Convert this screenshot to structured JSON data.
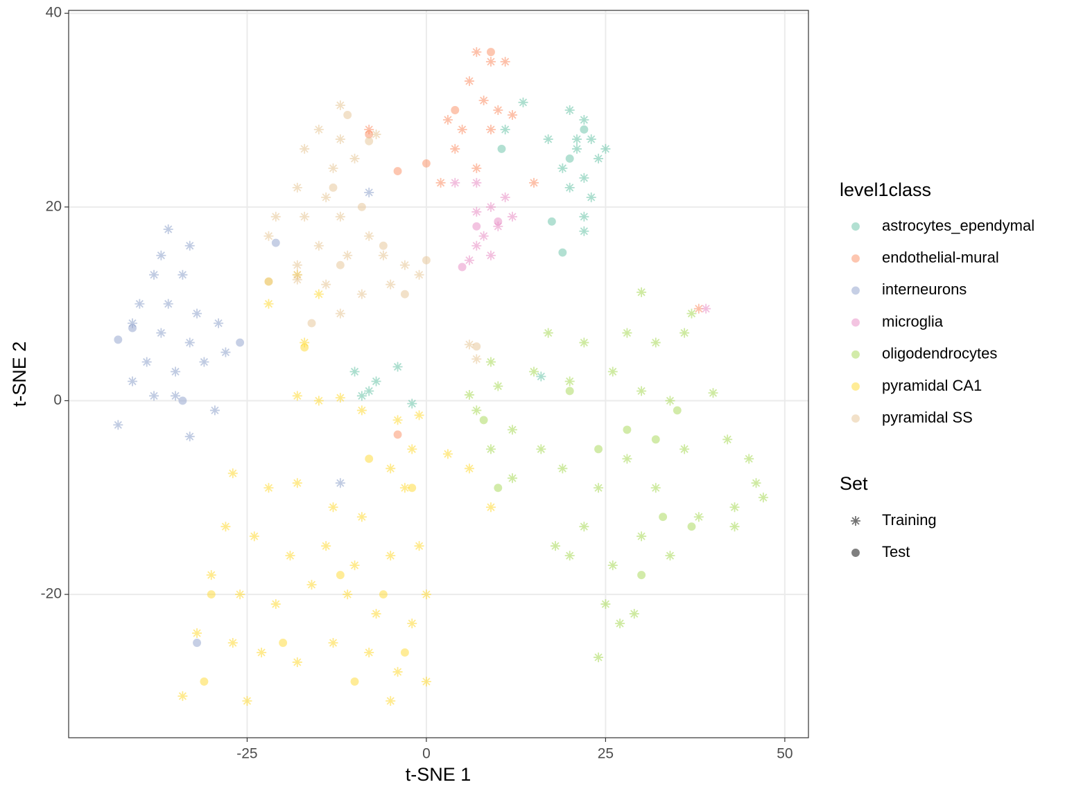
{
  "chart_data": {
    "type": "scatter",
    "x_label": "t-SNE 1",
    "y_label": "t-SNE 2",
    "xlim": [
      -49.9,
      53.3
    ],
    "ylim": [
      -34.8,
      40.3
    ],
    "xticks": [
      -25,
      0,
      25,
      50
    ],
    "yticks": [
      -20,
      0,
      20,
      40
    ],
    "grid": true,
    "legend_title": "level1class",
    "set_title": "Set",
    "sets": [
      {
        "name": "Training",
        "marker": "asterisk"
      },
      {
        "name": "Test",
        "marker": "circle"
      }
    ],
    "series": [
      {
        "name": "astrocytes_ependymal",
        "color": "#66c2a5",
        "training_x": [
          20,
          22,
          23,
          21,
          24,
          22,
          20,
          23,
          22,
          21,
          25,
          19,
          17,
          22,
          13.5,
          11,
          -10,
          -8,
          -4,
          -7,
          -9,
          16,
          -2
        ],
        "training_y": [
          30,
          29,
          27,
          26,
          25,
          23,
          22,
          21,
          19,
          27,
          26,
          24,
          27,
          17.5,
          30.8,
          28,
          3,
          1,
          3.5,
          2,
          0.5,
          2.5,
          -0.3
        ],
        "test_x": [
          19,
          17.5,
          22,
          10.5,
          20
        ],
        "test_y": [
          15.3,
          18.5,
          28,
          26,
          25
        ]
      },
      {
        "name": "endothelial-mural",
        "color": "#fc8d62",
        "training_x": [
          7,
          9,
          11,
          6,
          8,
          3,
          5,
          9,
          4,
          7,
          2,
          12,
          10,
          -8,
          15,
          38
        ],
        "training_y": [
          36,
          35,
          35,
          33,
          31,
          29,
          28,
          28,
          26,
          24,
          22.5,
          29.5,
          30,
          28,
          22.5,
          9.5
        ],
        "test_x": [
          0,
          -4,
          9,
          4,
          -4,
          -8
        ],
        "test_y": [
          24.5,
          23.7,
          36,
          30,
          -3.5,
          27.5
        ]
      },
      {
        "name": "interneurons",
        "color": "#8da0cb",
        "training_x": [
          -36,
          -37,
          -33,
          -38,
          -34,
          -40,
          -36,
          -32,
          -41,
          -37,
          -33,
          -29,
          -28,
          -39,
          -35,
          -31,
          -41,
          -38,
          -35,
          -43,
          -33,
          -29.5,
          -12,
          -8
        ],
        "training_y": [
          17.7,
          15,
          16,
          13,
          13,
          10,
          10,
          9,
          8,
          7,
          6,
          8,
          5,
          4,
          3,
          4,
          2,
          0.5,
          0.5,
          -2.5,
          -3.7,
          -1,
          -8.5,
          21.5
        ],
        "test_x": [
          -43,
          -41,
          -26,
          -21,
          -34,
          -32
        ],
        "test_y": [
          6.3,
          7.5,
          6,
          16.3,
          0,
          -25
        ]
      },
      {
        "name": "microglia",
        "color": "#e78ac3",
        "training_x": [
          11,
          9,
          12,
          7,
          10,
          8,
          7,
          9,
          6,
          4,
          7,
          39
        ],
        "training_y": [
          21,
          20,
          19,
          19.5,
          18,
          17,
          16,
          15,
          14.5,
          22.5,
          22.5,
          9.5
        ],
        "test_x": [
          10,
          7,
          5
        ],
        "test_y": [
          18.5,
          18,
          13.8
        ]
      },
      {
        "name": "oligodendrocytes",
        "color": "#a6d854",
        "training_x": [
          30,
          37,
          36,
          40,
          45,
          46,
          47,
          43,
          28,
          32,
          22,
          26,
          30,
          34,
          20,
          15,
          10,
          7,
          9,
          12,
          16,
          19,
          24,
          28,
          32,
          36,
          38,
          42,
          22,
          26,
          30,
          34,
          20,
          25,
          27,
          29,
          24,
          18,
          12,
          6,
          9,
          17,
          43
        ],
        "training_y": [
          11.2,
          9,
          7,
          0.8,
          -6,
          -8.5,
          -10,
          -11,
          7,
          6,
          6,
          3,
          1,
          0,
          2,
          3,
          1.5,
          -1,
          -5,
          -3,
          -5,
          -7,
          -9,
          -6,
          -9,
          -5,
          -12,
          -4,
          -13,
          -17,
          -14,
          -16,
          -16,
          -21,
          -23,
          -22,
          -26.5,
          -15,
          -8,
          0.6,
          4,
          7,
          -13
        ],
        "test_x": [
          28,
          32,
          24,
          20,
          33,
          37,
          30,
          35,
          8,
          10
        ],
        "test_y": [
          -3,
          -4,
          -5,
          1,
          -12,
          -13,
          -18,
          -1,
          -2,
          -9
        ]
      },
      {
        "name": "pyramidal CA1",
        "color": "#ffd92f",
        "training_x": [
          -18,
          -15,
          -12,
          -9,
          -4,
          -1,
          -2,
          -5,
          -3,
          3,
          6,
          9,
          -27,
          -22,
          -18,
          -13,
          -9,
          -28,
          -24,
          -19,
          -14,
          -10,
          -5,
          -1,
          -30,
          -26,
          -21,
          -16,
          -11,
          -7,
          -2,
          0,
          -32,
          -27,
          -23,
          -18,
          -13,
          -8,
          -4,
          0,
          -34,
          -25,
          -5,
          -22,
          -17,
          -15,
          -18
        ],
        "training_y": [
          0.5,
          0,
          0.3,
          -1,
          -2,
          -1.5,
          -5,
          -7,
          -9,
          -5.5,
          -7,
          -11,
          -7.5,
          -9,
          -8.5,
          -11,
          -12,
          -13,
          -14,
          -16,
          -15,
          -17,
          -16,
          -15,
          -18,
          -20,
          -21,
          -19,
          -20,
          -22,
          -23,
          -20,
          -24,
          -25,
          -26,
          -27,
          -25,
          -26,
          -28,
          -29,
          -30.5,
          -31,
          -31,
          10,
          6,
          11,
          13
        ],
        "test_x": [
          -30,
          -20,
          -12,
          -6,
          -2,
          -31,
          -10,
          -3,
          -8,
          -17,
          -22
        ],
        "test_y": [
          -20,
          -25,
          -18,
          -20,
          -9,
          -29,
          -29,
          -26,
          -6,
          5.5,
          12.3
        ]
      },
      {
        "name": "pyramidal SS",
        "color": "#e5c494",
        "training_x": [
          -12,
          -15,
          -12,
          -17,
          -13,
          -10,
          -18,
          -14,
          -21,
          -17,
          -12,
          -8,
          -15,
          -11,
          -6,
          -3,
          -18,
          -14,
          -9,
          -5,
          -1,
          -12,
          -18,
          -7,
          6,
          7,
          -22,
          -18
        ],
        "training_y": [
          30.5,
          28,
          27,
          26,
          24,
          25,
          22,
          21,
          19,
          19,
          19,
          17,
          16,
          15,
          15,
          14,
          14,
          12,
          11,
          12,
          13,
          9,
          12.5,
          27.5,
          5.8,
          4.3,
          17,
          13
        ],
        "test_x": [
          -11,
          -8,
          -13,
          -9,
          -6,
          -12,
          -3,
          -16,
          -22,
          0,
          7
        ],
        "test_y": [
          29.5,
          26.8,
          22,
          20,
          16,
          14,
          11,
          8,
          12.3,
          14.5,
          5.6
        ]
      }
    ]
  }
}
